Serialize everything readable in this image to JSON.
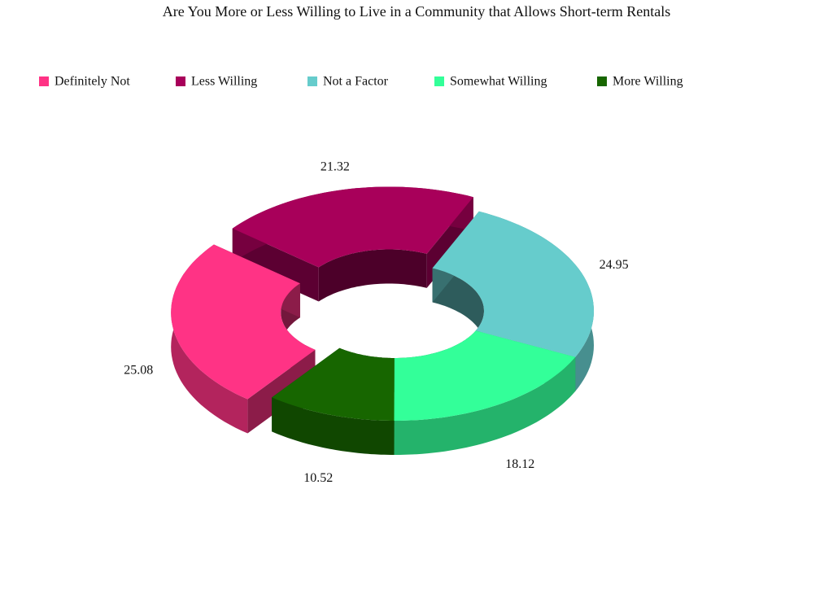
{
  "chart_data": {
    "type": "donut3d",
    "title": "Are You More or Less Willing to Live in a Community that Allows Short-term Rentals",
    "categories": [
      "Definitely Not",
      "Less Willing",
      "Not a Factor",
      "Somewhat Willing",
      "More Willing"
    ],
    "values": [
      25.08,
      21.32,
      24.95,
      18.12,
      10.52
    ],
    "colors": [
      "#ff3385",
      "#a8005a",
      "#66cccc",
      "#33ff99",
      "#176600"
    ],
    "exploded": [
      true,
      true,
      false,
      false,
      false
    ],
    "legend": "top"
  }
}
